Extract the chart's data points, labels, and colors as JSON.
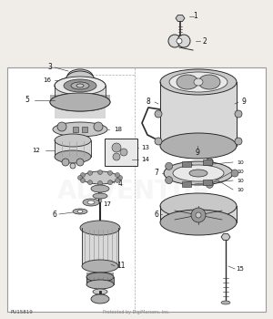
{
  "bg_color": "#f0ede8",
  "diagram_bg": "#ffffff",
  "line_color": "#2a2a2a",
  "gray1": "#c8c8c8",
  "gray2": "#b0b0b0",
  "gray3": "#989898",
  "gray4": "#808080",
  "gray5": "#d8d8d8",
  "gray6": "#e8e8e8",
  "footer_text": "PU15819",
  "sub_footer": "Protected by DigiMarcers, Inc.",
  "watermark": "ADVENTUR",
  "border_color": "#999999"
}
